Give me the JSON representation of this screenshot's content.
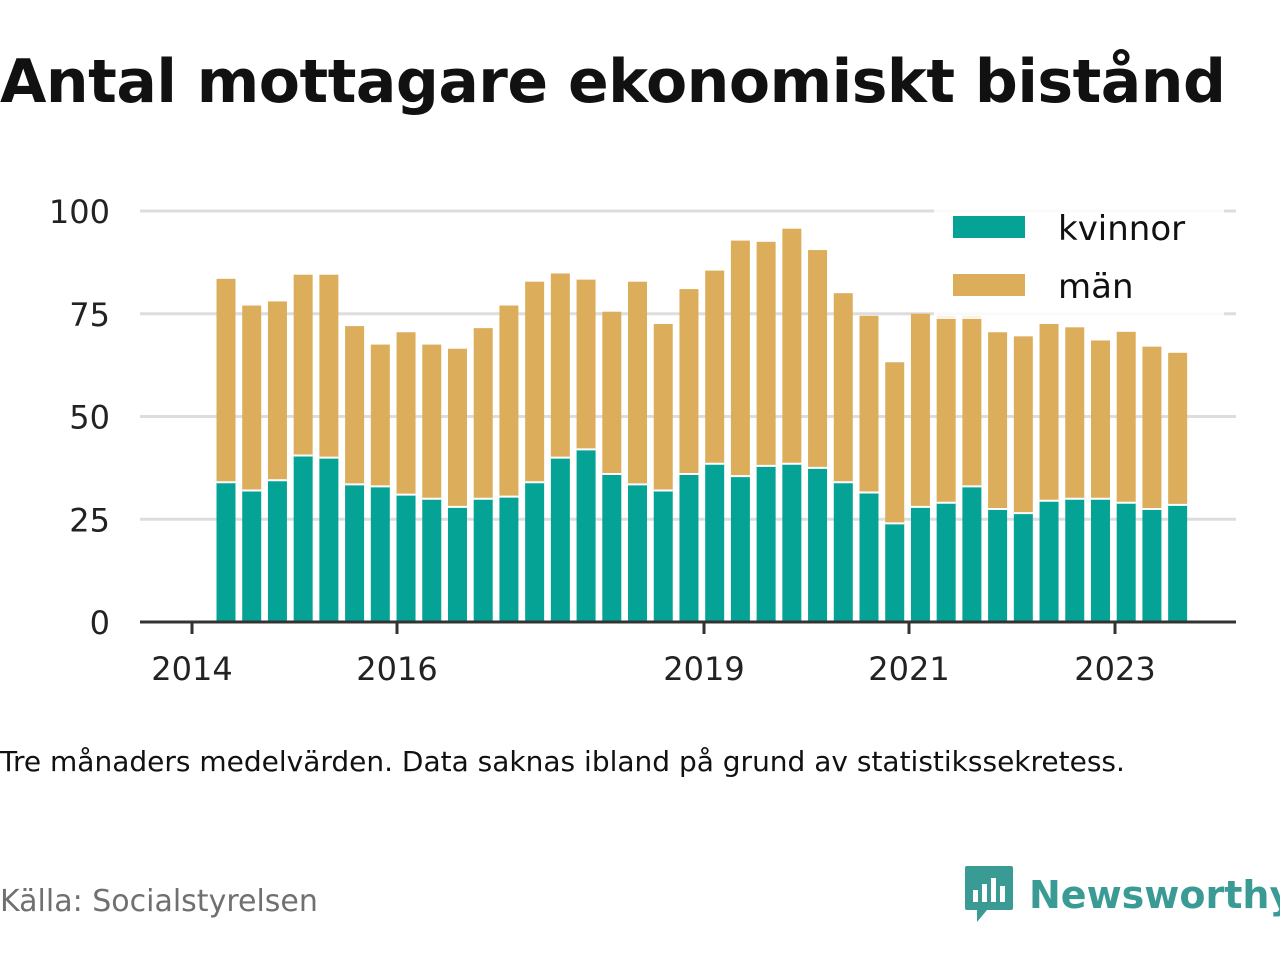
{
  "title": "Antal mottagare ekonomiskt bistånd",
  "note": "Tre månaders medelvärden. Data saknas ibland på grund av statistikssekretess.",
  "source": "Källa: Socialstyrelsen",
  "brand": {
    "name": "Newsworthy",
    "icon": "newsworthy-logo-icon"
  },
  "colors": {
    "kvinnor": "#05a395",
    "man": "#dcae5c",
    "grid": "#dddddd",
    "axis": "#333333"
  },
  "chart_data": {
    "type": "bar",
    "stacked": true,
    "grid": true,
    "legend_position": "top-right",
    "ylim": [
      0,
      100
    ],
    "yticks": [
      0,
      25,
      50,
      75,
      100
    ],
    "xticks": [
      "2014",
      "2016",
      "2019",
      "2021",
      "2023"
    ],
    "categories": [
      "2014 Q2",
      "2014 Q3",
      "2014 Q4",
      "2015 Q1",
      "2015 Q2",
      "2015 Q3",
      "2015 Q4",
      "2016 Q1",
      "2016 Q2",
      "2016 Q3",
      "2016 Q4",
      "2017 Q1",
      "2017 Q2",
      "2017 Q3",
      "2017 Q4",
      "2018 Q1",
      "2018 Q2",
      "2018 Q3",
      "2018 Q4",
      "2019 Q1",
      "2019 Q2",
      "2019 Q3",
      "2019 Q4",
      "2020 Q1",
      "2020 Q2",
      "2020 Q3",
      "2020 Q4",
      "2021 Q1",
      "2021 Q2",
      "2021 Q3",
      "2021 Q4",
      "2022 Q1",
      "2022 Q2",
      "2022 Q3",
      "2022 Q4",
      "2023 Q1",
      "2023 Q2",
      "2023 Q3"
    ],
    "series": [
      {
        "name": "kvinnor",
        "values": [
          34,
          32,
          34.5,
          40.5,
          40,
          33.5,
          33,
          31,
          30,
          28,
          30,
          30.5,
          34,
          40,
          42,
          36,
          33.5,
          32,
          36,
          38.5,
          35.5,
          38,
          38.5,
          37.5,
          34,
          31.5,
          24,
          28,
          29,
          33,
          27.5,
          26.5,
          29.5,
          30,
          30,
          29,
          27.5,
          28.5
        ]
      },
      {
        "name": "män",
        "values": [
          49.5,
          45,
          43.5,
          44,
          44.5,
          38.5,
          34.5,
          39.5,
          37.5,
          38.5,
          41.5,
          46.5,
          48.8,
          44.8,
          41.3,
          39.5,
          49.3,
          40.5,
          45,
          47,
          57.3,
          54.5,
          57.2,
          53,
          46,
          43,
          39.2,
          47,
          45.5,
          41.5,
          43,
          43,
          43,
          41.7,
          38.5,
          41.6,
          39.5,
          37
        ]
      }
    ]
  }
}
